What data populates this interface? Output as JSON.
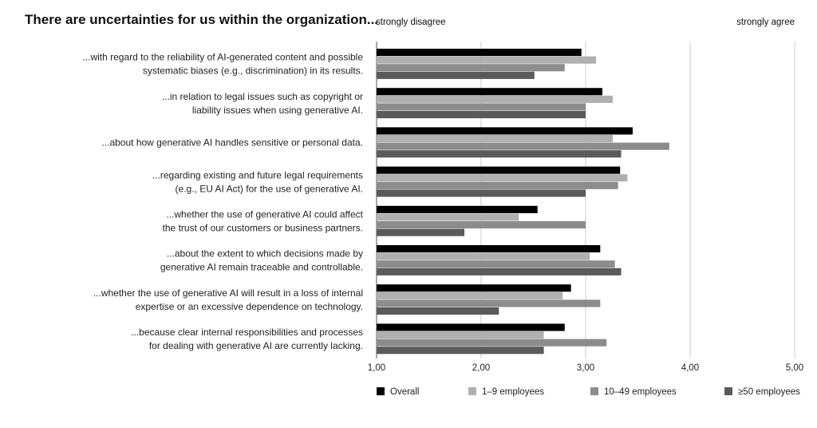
{
  "chart_data": {
    "type": "bar",
    "orientation": "horizontal",
    "title": "There are uncertainties for us within the organization...",
    "scale_labels": {
      "left": "strongly disagree",
      "right": "strongly agree"
    },
    "categories": [
      [
        "...with regard to the reliability of AI-generated content and possible",
        "systematic biases (e.g., discrimination) in its results."
      ],
      [
        "...in relation to legal issues such as copyright or",
        "liability issues when using generative AI."
      ],
      [
        "...about how generative AI handles sensitive or personal data."
      ],
      [
        "...regarding existing and future legal requirements",
        "(e.g., EU AI Act) for the use of generative AI."
      ],
      [
        "...whether the use of generative AI could affect",
        "the trust of our customers or business partners."
      ],
      [
        "...about the extent to which decisions made by",
        "generative AI remain traceable and controllable."
      ],
      [
        "...whether the use of generative AI will result in a loss of internal",
        "expertise or an excessive dependence on technology."
      ],
      [
        "...because clear internal responsibilities and processes",
        "for dealing with generative AI are currently lacking."
      ]
    ],
    "series": [
      {
        "name": "Overall",
        "color": "#000000",
        "values": [
          2.96,
          3.16,
          3.45,
          3.33,
          2.54,
          3.14,
          2.86,
          2.8
        ]
      },
      {
        "name": "1–9 employees",
        "color": "#b0b0b0",
        "values": [
          3.1,
          3.26,
          3.26,
          3.4,
          2.36,
          3.04,
          2.78,
          2.6
        ]
      },
      {
        "name": "10–49 employees",
        "color": "#8c8c8c",
        "values": [
          2.8,
          3.0,
          3.8,
          3.31,
          3.0,
          3.28,
          3.14,
          3.2
        ]
      },
      {
        "name": "≥50 employees",
        "color": "#5a5a5a",
        "values": [
          2.51,
          3.0,
          3.34,
          3.0,
          1.84,
          3.34,
          2.17,
          2.6
        ]
      }
    ],
    "xlim": [
      1,
      5
    ],
    "xticks": [
      "1,00",
      "2,00",
      "3,00",
      "4,00",
      "5,00"
    ],
    "grid": true,
    "legend_position": "bottom"
  }
}
